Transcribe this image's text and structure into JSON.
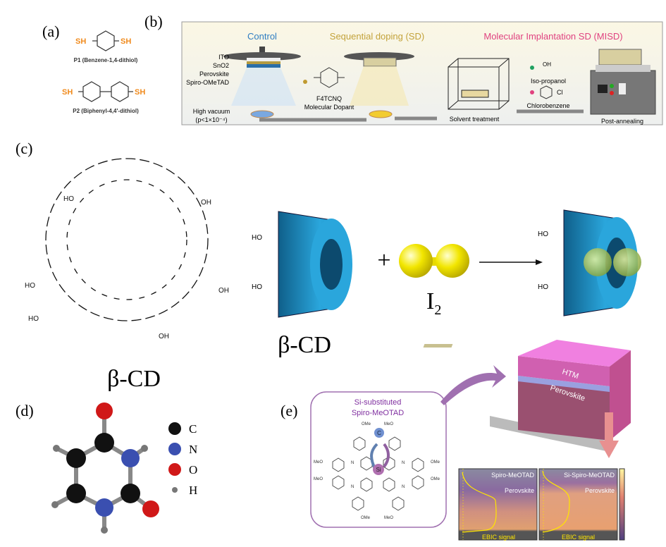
{
  "panel_labels": {
    "a": "(a)",
    "b": "(b)",
    "c": "(c)",
    "d": "(d)",
    "e": "(e)"
  },
  "panel_a": {
    "sh": "SH",
    "p1_label": "P1 (Benzene-1,4-dithiol)",
    "p2_label": "P2 (Biphenyl-4,4'-dithiol)",
    "accent_color": "#f08a1c"
  },
  "panel_b": {
    "control": "Control",
    "sd": "Sequential doping (SD)",
    "misd": "Molecular Implantation SD (MISD)",
    "layers": [
      "ITO",
      "SnO2",
      "Perovskite",
      "Spiro-OMeTAD"
    ],
    "vacuum": "High vacuum",
    "pressure": "(p<1×10⁻⁴)",
    "dopant_name": "F4TCNQ",
    "dopant_desc": "Molecular Dopant",
    "solvent": "Solvent treatment",
    "oh": "OH",
    "iso": "Iso-propanol",
    "cl": "Cl",
    "chloro": "Chlorobenzene",
    "anneal": "Post-annealing",
    "colors": {
      "control": "#2f7dc2",
      "sd": "#c3a23a",
      "misd": "#e0427f"
    }
  },
  "panel_c": {
    "ring_label": "β-CD",
    "cone_label": "β-CD",
    "plus": "+",
    "iodine": "I",
    "iodine_sub": "2",
    "ho": "HO",
    "oh": "OH"
  },
  "panel_d": {
    "legend": [
      {
        "symbol": "C",
        "color": "#111111"
      },
      {
        "symbol": "N",
        "color": "#3a4fb0"
      },
      {
        "symbol": "O",
        "color": "#d01818"
      },
      {
        "symbol": "H",
        "color": "#777777"
      }
    ]
  },
  "panel_e": {
    "title_line1": "Si-substituted",
    "title_line2": "Spiro-MeOTAD",
    "c_atom": "C",
    "si_atom": "Si",
    "ome": "OMe",
    "meo": "MeO",
    "n": "N",
    "htm": "HTM",
    "perovskite": "Perovskite",
    "img1_title": "Spiro-MeOTAD",
    "img2_title": "Si-Spiro-MeOTAD",
    "img_perovskite": "Perovskite",
    "ebic": "EBIC signal"
  }
}
